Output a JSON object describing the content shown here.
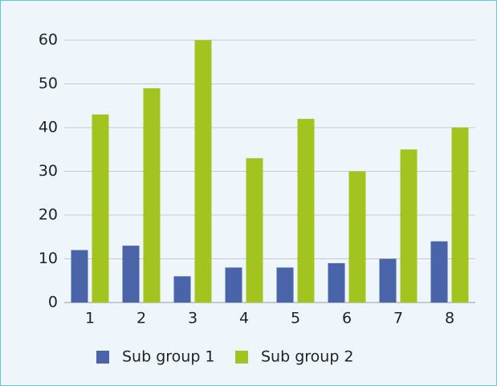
{
  "chart_data": {
    "type": "bar",
    "categories": [
      "1",
      "2",
      "3",
      "4",
      "5",
      "6",
      "7",
      "8"
    ],
    "series": [
      {
        "name": "Sub group 1",
        "color": "#4a64aa",
        "values": [
          12,
          13,
          6,
          8,
          8,
          9,
          10,
          14
        ]
      },
      {
        "name": "Sub group 2",
        "color": "#a3c41f",
        "values": [
          43,
          49,
          60,
          33,
          42,
          30,
          35,
          40
        ]
      }
    ],
    "ylim": [
      0,
      60
    ],
    "yticks": [
      0,
      10,
      20,
      30,
      40,
      50,
      60
    ],
    "grid": true,
    "legend": "bottom"
  }
}
